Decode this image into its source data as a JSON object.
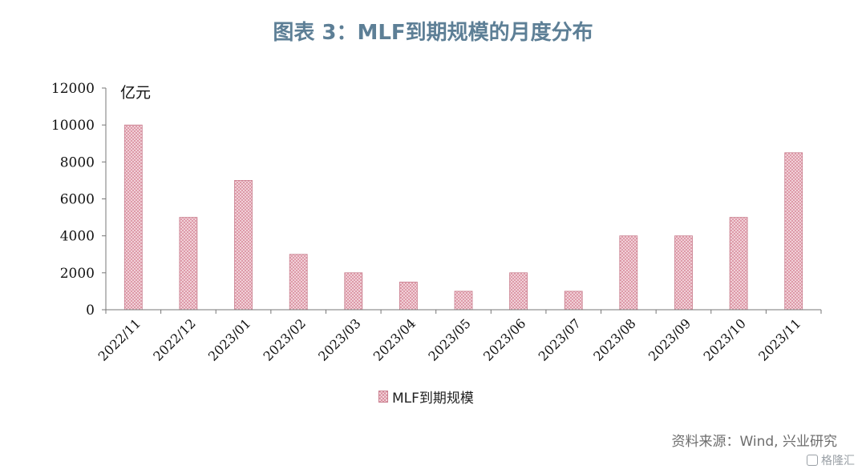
{
  "chart_data": {
    "type": "bar",
    "title": "图表 3：MLF到期规模的月度分布",
    "unit_label": "亿元",
    "categories": [
      "2022/11",
      "2022/12",
      "2023/01",
      "2023/02",
      "2023/03",
      "2023/04",
      "2023/05",
      "2023/06",
      "2023/07",
      "2023/08",
      "2023/09",
      "2023/10",
      "2023/11"
    ],
    "series": [
      {
        "name": "MLF到期规模",
        "values": [
          10000,
          5000,
          7000,
          3000,
          2000,
          1500,
          1000,
          2000,
          1000,
          4000,
          4000,
          5000,
          8500
        ]
      }
    ],
    "ylim": [
      0,
      12000
    ],
    "yticks": [
      0,
      2000,
      4000,
      6000,
      8000,
      10000,
      12000
    ],
    "grid": false,
    "legend_position": "bottom-center",
    "bar_color": "#e8a9b6"
  },
  "source": "资料来源：Wind, 兴业研究",
  "watermark": "格隆汇"
}
